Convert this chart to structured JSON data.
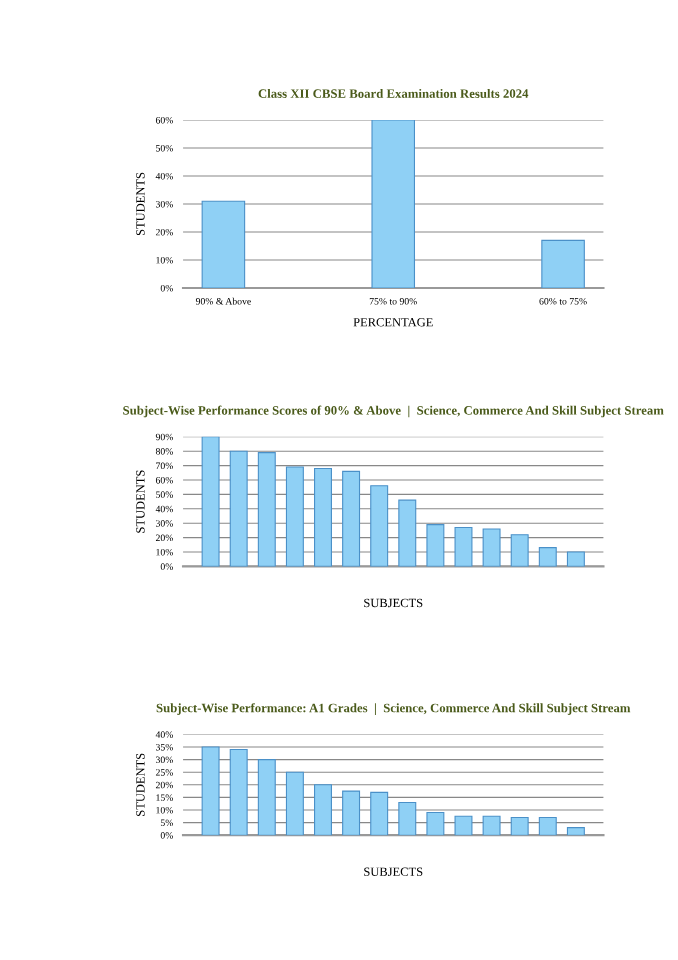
{
  "chart_data": [
    {
      "type": "bar",
      "title": "Class XII CBSE Board Examination Results 2024",
      "xlabel": "PERCENTAGE",
      "ylabel": "STUDENTS",
      "categories": [
        "90% & Above",
        "75% to 90%",
        "60% to 75%"
      ],
      "values": [
        31,
        60,
        17
      ],
      "color": "#8fd0f5",
      "ylim": [
        0,
        60
      ],
      "yticks": [
        {
          "value": 0,
          "label": "0%"
        },
        {
          "value": 10,
          "label": "10%"
        },
        {
          "value": 20,
          "label": "20%"
        },
        {
          "value": 30,
          "label": "30%"
        },
        {
          "value": 40,
          "label": "40%"
        },
        {
          "value": 50,
          "label": "50%"
        },
        {
          "value": 60,
          "label": "60%"
        }
      ],
      "grid": "y"
    },
    {
      "type": "bar",
      "title": "Subject-Wise Performance Scores of 90% & Above  |  Science, Commerce And Skill Subject Stream",
      "xlabel": "SUBJECTS",
      "ylabel": "STUDENTS",
      "categories": [
        null,
        null,
        null,
        null,
        null,
        null,
        null,
        null,
        null,
        null,
        null,
        null,
        null,
        null
      ],
      "values": [
        90,
        80,
        79,
        69,
        68,
        66,
        56,
        46,
        29,
        27,
        26,
        22,
        13,
        10
      ],
      "color": "#8fd0f5",
      "ylim": [
        0,
        90
      ],
      "yticks": [
        {
          "value": 0,
          "label": "0%"
        },
        {
          "value": 10,
          "label": "10%"
        },
        {
          "value": 20,
          "label": "20%"
        },
        {
          "value": 30,
          "label": "30%"
        },
        {
          "value": 40,
          "label": "40%"
        },
        {
          "value": 50,
          "label": "50%"
        },
        {
          "value": 60,
          "label": "60%"
        },
        {
          "value": 70,
          "label": "70%"
        },
        {
          "value": 80,
          "label": "80%"
        },
        {
          "value": 90,
          "label": "90%"
        }
      ],
      "grid": "y"
    },
    {
      "type": "bar",
      "title": "Subject-Wise Performance: A1 Grades  |  Science, Commerce And Skill Subject Stream",
      "xlabel": "SUBJECTS",
      "ylabel": "STUDENTS",
      "categories": [
        null,
        null,
        null,
        null,
        null,
        null,
        null,
        null,
        null,
        null,
        null,
        null,
        null,
        null
      ],
      "values": [
        35,
        34,
        30,
        25,
        20,
        17.5,
        17,
        13,
        9,
        7.5,
        7.5,
        7,
        7,
        3
      ],
      "color": "#8fd0f5",
      "ylim": [
        0,
        40
      ],
      "yticks": [
        {
          "value": 0,
          "label": "0%"
        },
        {
          "value": 5,
          "label": "5%"
        },
        {
          "value": 10,
          "label": "10%"
        },
        {
          "value": 15,
          "label": "15%"
        },
        {
          "value": 20,
          "label": "20%"
        },
        {
          "value": 25,
          "label": "25%"
        },
        {
          "value": 30,
          "label": "30%"
        },
        {
          "value": 35,
          "label": "35%"
        },
        {
          "value": 40,
          "label": "40%"
        }
      ],
      "grid": "y"
    }
  ]
}
